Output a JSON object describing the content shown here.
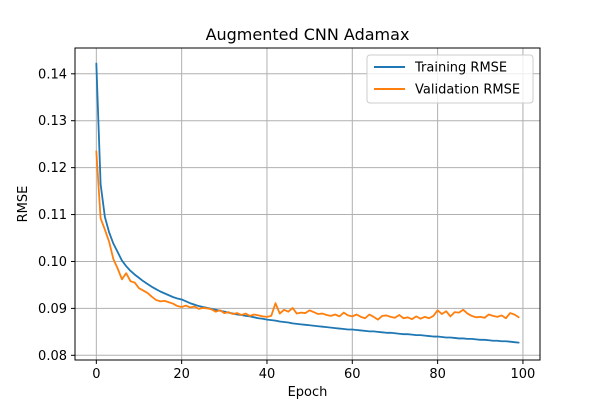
{
  "chart_data": {
    "type": "line",
    "title": "Augmented CNN Adamax",
    "xlabel": "Epoch",
    "ylabel": "RMSE",
    "xlim": [
      -5,
      104
    ],
    "ylim": [
      0.079,
      0.1455
    ],
    "xticks": [
      0,
      20,
      40,
      60,
      80,
      100
    ],
    "yticks": [
      0.08,
      0.09,
      0.1,
      0.11,
      0.12,
      0.13,
      0.14
    ],
    "ytick_labels": [
      "0.08",
      "0.09",
      "0.10",
      "0.11",
      "0.12",
      "0.13",
      "0.14"
    ],
    "grid": true,
    "legend_position": "top-right",
    "series": [
      {
        "name": "Training RMSE",
        "color": "#1f77b4",
        "x": [
          0,
          1,
          2,
          3,
          4,
          5,
          6,
          7,
          8,
          9,
          10,
          11,
          12,
          13,
          14,
          15,
          16,
          17,
          18,
          19,
          20,
          21,
          22,
          23,
          24,
          25,
          26,
          27,
          28,
          29,
          30,
          31,
          32,
          33,
          34,
          35,
          36,
          37,
          38,
          39,
          40,
          41,
          42,
          43,
          44,
          45,
          46,
          47,
          48,
          49,
          50,
          51,
          52,
          53,
          54,
          55,
          56,
          57,
          58,
          59,
          60,
          61,
          62,
          63,
          64,
          65,
          66,
          67,
          68,
          69,
          70,
          71,
          72,
          73,
          74,
          75,
          76,
          77,
          78,
          79,
          80,
          81,
          82,
          83,
          84,
          85,
          86,
          87,
          88,
          89,
          90,
          91,
          92,
          93,
          94,
          95,
          96,
          97,
          98,
          99
        ],
        "values": [
          0.1422,
          0.1165,
          0.1095,
          0.1062,
          0.1038,
          0.102,
          0.1002,
          0.099,
          0.098,
          0.0972,
          0.0965,
          0.0958,
          0.0952,
          0.0946,
          0.0941,
          0.0936,
          0.0932,
          0.0928,
          0.0924,
          0.0921,
          0.0919,
          0.0915,
          0.0911,
          0.0908,
          0.0905,
          0.0903,
          0.0901,
          0.0899,
          0.0897,
          0.0895,
          0.0893,
          0.0891,
          0.0889,
          0.0887,
          0.0886,
          0.0884,
          0.0883,
          0.0881,
          0.0879,
          0.0878,
          0.0876,
          0.0875,
          0.0874,
          0.0872,
          0.0871,
          0.087,
          0.0868,
          0.0867,
          0.0866,
          0.0865,
          0.0864,
          0.0863,
          0.0862,
          0.0861,
          0.086,
          0.0859,
          0.0858,
          0.0857,
          0.0856,
          0.0855,
          0.0855,
          0.0854,
          0.0853,
          0.0852,
          0.0851,
          0.0851,
          0.085,
          0.0849,
          0.0848,
          0.0848,
          0.0847,
          0.0846,
          0.0845,
          0.0845,
          0.0844,
          0.0843,
          0.0843,
          0.0842,
          0.0841,
          0.084,
          0.084,
          0.0839,
          0.0838,
          0.0838,
          0.0837,
          0.0836,
          0.0836,
          0.0835,
          0.0835,
          0.0834,
          0.0833,
          0.0833,
          0.0832,
          0.0831,
          0.0831,
          0.083,
          0.083,
          0.0829,
          0.0828,
          0.0827
        ]
      },
      {
        "name": "Validation RMSE",
        "color": "#ff7f0e",
        "x": [
          0,
          1,
          2,
          3,
          4,
          5,
          6,
          7,
          8,
          9,
          10,
          11,
          12,
          13,
          14,
          15,
          16,
          17,
          18,
          19,
          20,
          21,
          22,
          23,
          24,
          25,
          26,
          27,
          28,
          29,
          30,
          31,
          32,
          33,
          34,
          35,
          36,
          37,
          38,
          39,
          40,
          41,
          42,
          43,
          44,
          45,
          46,
          47,
          48,
          49,
          50,
          51,
          52,
          53,
          54,
          55,
          56,
          57,
          58,
          59,
          60,
          61,
          62,
          63,
          64,
          65,
          66,
          67,
          68,
          69,
          70,
          71,
          72,
          73,
          74,
          75,
          76,
          77,
          78,
          79,
          80,
          81,
          82,
          83,
          84,
          85,
          86,
          87,
          88,
          89,
          90,
          91,
          92,
          93,
          94,
          95,
          96,
          97,
          98,
          99
        ],
        "values": [
          0.1235,
          0.1092,
          0.1068,
          0.1042,
          0.1005,
          0.0985,
          0.0962,
          0.0975,
          0.0958,
          0.0955,
          0.0943,
          0.0938,
          0.0933,
          0.0925,
          0.0918,
          0.0915,
          0.0916,
          0.0913,
          0.091,
          0.0905,
          0.0903,
          0.0906,
          0.0902,
          0.0904,
          0.0899,
          0.0901,
          0.09,
          0.0898,
          0.0893,
          0.0896,
          0.089,
          0.0892,
          0.0888,
          0.089,
          0.0886,
          0.0889,
          0.0884,
          0.0887,
          0.0885,
          0.0883,
          0.0882,
          0.0884,
          0.0911,
          0.0889,
          0.0897,
          0.0893,
          0.0901,
          0.0889,
          0.0891,
          0.089,
          0.0896,
          0.0892,
          0.0888,
          0.0889,
          0.0886,
          0.0884,
          0.0887,
          0.0883,
          0.0891,
          0.0885,
          0.0883,
          0.0887,
          0.0882,
          0.0879,
          0.0887,
          0.0882,
          0.0876,
          0.0884,
          0.0885,
          0.0882,
          0.088,
          0.0886,
          0.0879,
          0.0881,
          0.0877,
          0.0883,
          0.0878,
          0.0882,
          0.0879,
          0.0884,
          0.0896,
          0.0888,
          0.0894,
          0.0883,
          0.0892,
          0.0891,
          0.0897,
          0.0889,
          0.0884,
          0.0881,
          0.0882,
          0.088,
          0.0887,
          0.0884,
          0.0882,
          0.0885,
          0.0879,
          0.089,
          0.0887,
          0.0881
        ]
      }
    ]
  }
}
